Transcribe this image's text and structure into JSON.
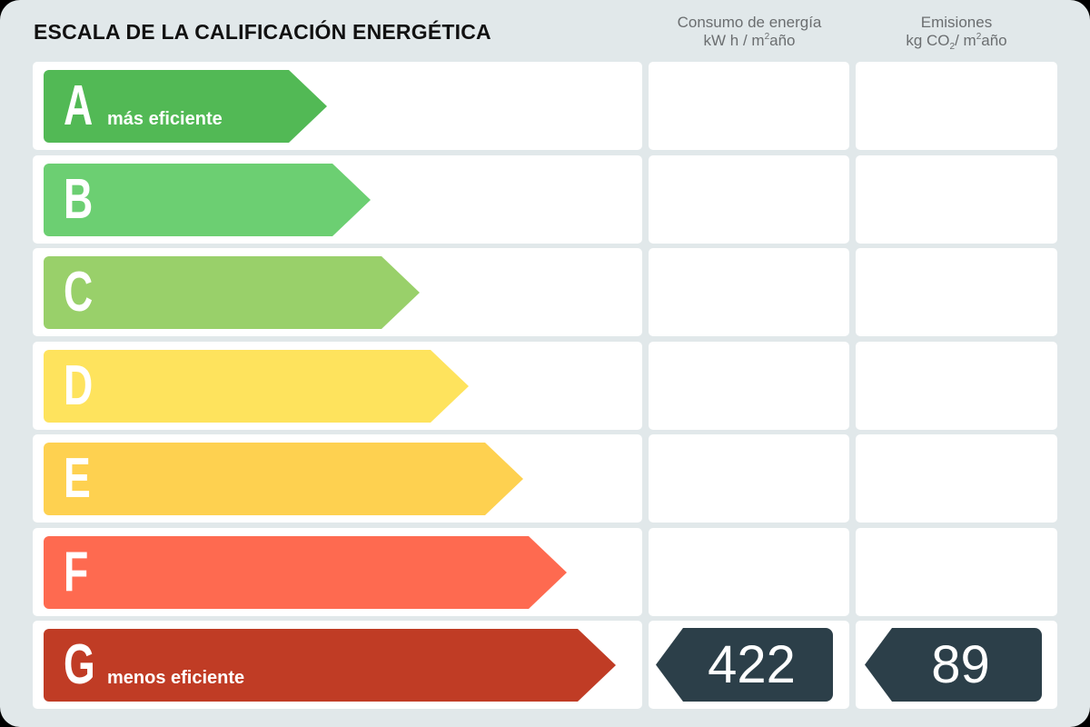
{
  "title": "ESCALA DE LA CALIFICACIÓN ENERGÉTICA",
  "columns": {
    "consumo": {
      "line1": "Consumo de energía",
      "unit_pre": "kW h / m",
      "unit_sup": "2",
      "unit_post": "año"
    },
    "emisiones": {
      "line1": "Emisiones",
      "unit_pre": "kg CO",
      "unit_sub": "2",
      "unit_mid": "/ m",
      "unit_sup": "2",
      "unit_post": "año"
    }
  },
  "ratings": [
    {
      "letter": "A",
      "label": "más eficiente",
      "color": "#52b955"
    },
    {
      "letter": "B",
      "label": "",
      "color": "#6ccf72"
    },
    {
      "letter": "C",
      "label": "",
      "color": "#99d06a"
    },
    {
      "letter": "D",
      "label": "",
      "color": "#fee35d"
    },
    {
      "letter": "E",
      "label": "",
      "color": "#fed150"
    },
    {
      "letter": "F",
      "label": "",
      "color": "#fe6a50"
    },
    {
      "letter": "G",
      "label": "menos eficiente",
      "color": "#c03c25"
    }
  ],
  "result": {
    "rating": "G",
    "consumo": "422",
    "emisiones": "89",
    "badge_color": "#2c3f49"
  }
}
